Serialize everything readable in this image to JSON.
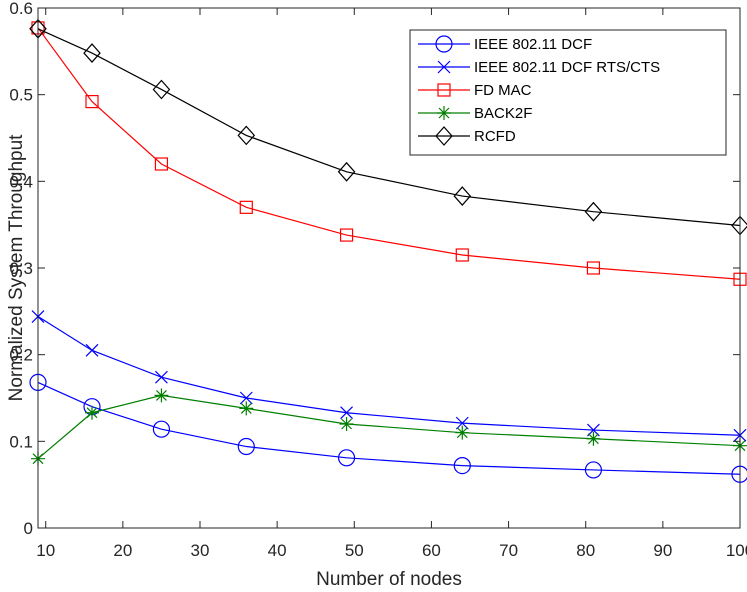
{
  "chart_data": {
    "type": "line",
    "title": "",
    "xlabel": "Number of nodes",
    "ylabel": "Normalized System Throughput",
    "xlim": [
      9,
      100
    ],
    "ylim": [
      0,
      0.6
    ],
    "xticks": [
      10,
      20,
      30,
      40,
      50,
      60,
      70,
      80,
      90,
      100
    ],
    "yticks": [
      0,
      0.1,
      0.2,
      0.3,
      0.4,
      0.5,
      0.6
    ],
    "xtick_labels": [
      "10",
      "20",
      "30",
      "40",
      "50",
      "60",
      "70",
      "80",
      "90",
      "100"
    ],
    "ytick_labels": [
      "0",
      "0.1",
      "0.2",
      "0.3",
      "0.4",
      "0.5",
      "0.6"
    ],
    "x": [
      9,
      16,
      25,
      36,
      49,
      64,
      81,
      100
    ],
    "grid": false,
    "legend_position": "top-right",
    "series": [
      {
        "name": "IEEE 802.11 DCF",
        "color": "#0000ff",
        "marker": "circle",
        "values": [
          0.168,
          0.14,
          0.114,
          0.094,
          0.081,
          0.072,
          0.067,
          0.062
        ]
      },
      {
        "name": "IEEE 802.11 DCF RTS/CTS",
        "color": "#0000ff",
        "marker": "x",
        "values": [
          0.244,
          0.205,
          0.174,
          0.15,
          0.133,
          0.121,
          0.113,
          0.107
        ]
      },
      {
        "name": "FD MAC",
        "color": "#ff0000",
        "marker": "square",
        "values": [
          0.577,
          0.492,
          0.42,
          0.37,
          0.338,
          0.315,
          0.3,
          0.287
        ]
      },
      {
        "name": "BACK2F",
        "color": "#008000",
        "marker": "asterisk",
        "values": [
          0.08,
          0.133,
          0.153,
          0.138,
          0.12,
          0.11,
          0.103,
          0.095
        ]
      },
      {
        "name": "RCFD",
        "color": "#000000",
        "marker": "diamond",
        "values": [
          0.576,
          0.548,
          0.506,
          0.453,
          0.411,
          0.383,
          0.365,
          0.349
        ]
      }
    ]
  }
}
